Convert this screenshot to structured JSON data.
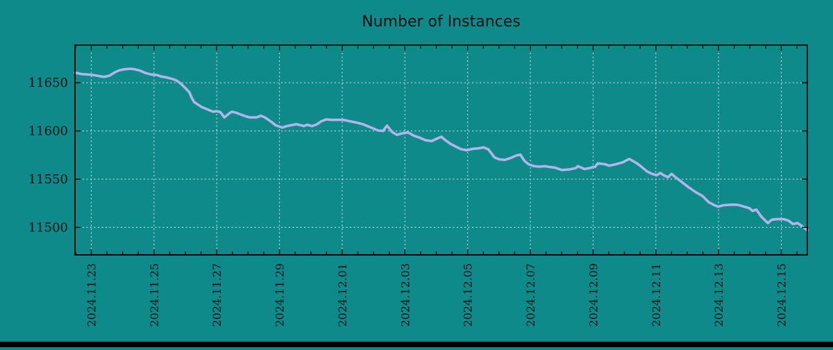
{
  "page": {
    "bottom_bar_color": "#000000"
  },
  "chart_data": {
    "type": "line",
    "title": "Number of Instances",
    "xlabel": "",
    "ylabel": "",
    "grid": true,
    "legend": "none",
    "x_axis_note": "x positions are in days, 0 = 2024.11.23 tick",
    "xlim": [
      -0.52,
      22.83
    ],
    "ylim": [
      11471.5,
      11689
    ],
    "yticks": [
      11500,
      11550,
      11600,
      11650
    ],
    "xticks": [
      {
        "pos": 0,
        "label": "2024.11.23"
      },
      {
        "pos": 2,
        "label": "2024.11.25"
      },
      {
        "pos": 4,
        "label": "2024.11.27"
      },
      {
        "pos": 6,
        "label": "2024.11.29"
      },
      {
        "pos": 8,
        "label": "2024.12.01"
      },
      {
        "pos": 10,
        "label": "2024.12.03"
      },
      {
        "pos": 12,
        "label": "2024.12.05"
      },
      {
        "pos": 14,
        "label": "2024.12.07"
      },
      {
        "pos": 16,
        "label": "2024.12.09"
      },
      {
        "pos": 18,
        "label": "2024.12.11"
      },
      {
        "pos": 20,
        "label": "2024.12.13"
      },
      {
        "pos": 22,
        "label": "2024.12.15"
      }
    ],
    "minor_xtick_step": 0.5,
    "colors": {
      "background": "#0e8a8b",
      "line": "#b4b4ea",
      "grid": "#e6e6e6",
      "axis": "#000000",
      "text": "#111111"
    },
    "series": [
      {
        "name": "instances",
        "points": [
          [
            -0.52,
            11660.5
          ],
          [
            -0.3,
            11659
          ],
          [
            -0.12,
            11658.5
          ],
          [
            0.06,
            11658
          ],
          [
            0.23,
            11657
          ],
          [
            0.41,
            11656
          ],
          [
            0.59,
            11657.5
          ],
          [
            0.76,
            11661
          ],
          [
            0.9,
            11663
          ],
          [
            1.07,
            11664
          ],
          [
            1.25,
            11664.5
          ],
          [
            1.38,
            11664
          ],
          [
            1.56,
            11662.5
          ],
          [
            1.74,
            11660
          ],
          [
            1.91,
            11658.5
          ],
          [
            2.09,
            11658
          ],
          [
            2.22,
            11656.5
          ],
          [
            2.4,
            11655.5
          ],
          [
            2.58,
            11654
          ],
          [
            2.71,
            11652.5
          ],
          [
            2.84,
            11649.5
          ],
          [
            3.0,
            11644.5
          ],
          [
            3.13,
            11640
          ],
          [
            3.2,
            11634.5
          ],
          [
            3.28,
            11630
          ],
          [
            3.51,
            11625
          ],
          [
            3.73,
            11622
          ],
          [
            3.88,
            11620
          ],
          [
            3.99,
            11620.5
          ],
          [
            4.12,
            11619.5
          ],
          [
            4.24,
            11614
          ],
          [
            4.39,
            11618
          ],
          [
            4.48,
            11620
          ],
          [
            4.61,
            11619
          ],
          [
            4.77,
            11617
          ],
          [
            4.9,
            11615.5
          ],
          [
            5.05,
            11614
          ],
          [
            5.27,
            11614
          ],
          [
            5.41,
            11615.8
          ],
          [
            5.56,
            11613.5
          ],
          [
            5.72,
            11610
          ],
          [
            5.87,
            11606
          ],
          [
            6.0,
            11604.5
          ],
          [
            6.09,
            11603.5
          ],
          [
            6.23,
            11605
          ],
          [
            6.38,
            11606
          ],
          [
            6.54,
            11607
          ],
          [
            6.67,
            11606
          ],
          [
            6.78,
            11605
          ],
          [
            6.89,
            11606.5
          ],
          [
            7.04,
            11605
          ],
          [
            7.2,
            11607
          ],
          [
            7.33,
            11610
          ],
          [
            7.49,
            11612
          ],
          [
            7.64,
            11611.5
          ],
          [
            7.82,
            11611.5
          ],
          [
            8.04,
            11611.5
          ],
          [
            8.26,
            11610
          ],
          [
            8.48,
            11608.5
          ],
          [
            8.66,
            11607
          ],
          [
            8.92,
            11603.5
          ],
          [
            9.14,
            11600.5
          ],
          [
            9.3,
            11600
          ],
          [
            9.43,
            11605.5
          ],
          [
            9.59,
            11599
          ],
          [
            9.74,
            11596
          ],
          [
            9.92,
            11597.5
          ],
          [
            10.1,
            11598.5
          ],
          [
            10.29,
            11595
          ],
          [
            10.47,
            11593
          ],
          [
            10.65,
            11590.5
          ],
          [
            10.85,
            11589.5
          ],
          [
            11.02,
            11592
          ],
          [
            11.16,
            11594
          ],
          [
            11.31,
            11590
          ],
          [
            11.46,
            11586.5
          ],
          [
            11.64,
            11583.5
          ],
          [
            11.8,
            11581
          ],
          [
            11.98,
            11580
          ],
          [
            12.17,
            11581.5
          ],
          [
            12.35,
            11582
          ],
          [
            12.51,
            11583
          ],
          [
            12.66,
            11581
          ],
          [
            12.75,
            11577
          ],
          [
            12.86,
            11572.5
          ],
          [
            13.01,
            11570.5
          ],
          [
            13.19,
            11570
          ],
          [
            13.37,
            11572
          ],
          [
            13.55,
            11574.5
          ],
          [
            13.68,
            11575.5
          ],
          [
            13.81,
            11569
          ],
          [
            13.94,
            11565.5
          ],
          [
            14.12,
            11563.5
          ],
          [
            14.3,
            11563
          ],
          [
            14.47,
            11563.5
          ],
          [
            14.63,
            11562.5
          ],
          [
            14.78,
            11562
          ],
          [
            15.0,
            11559.5
          ],
          [
            15.23,
            11560
          ],
          [
            15.45,
            11561.5
          ],
          [
            15.51,
            11563.5
          ],
          [
            15.73,
            11560.5
          ],
          [
            15.89,
            11561.5
          ],
          [
            16.07,
            11563
          ],
          [
            16.15,
            11566.5
          ],
          [
            16.38,
            11565.5
          ],
          [
            16.51,
            11564
          ],
          [
            16.73,
            11565.5
          ],
          [
            16.95,
            11567.5
          ],
          [
            17.15,
            11571
          ],
          [
            17.37,
            11567
          ],
          [
            17.5,
            11564
          ],
          [
            17.72,
            11558
          ],
          [
            17.88,
            11555.5
          ],
          [
            18.03,
            11554
          ],
          [
            18.14,
            11556.5
          ],
          [
            18.25,
            11554
          ],
          [
            18.39,
            11552
          ],
          [
            18.5,
            11555.5
          ],
          [
            18.61,
            11552.5
          ],
          [
            18.83,
            11547
          ],
          [
            19.05,
            11541.5
          ],
          [
            19.27,
            11536.5
          ],
          [
            19.49,
            11532.5
          ],
          [
            19.69,
            11526
          ],
          [
            19.87,
            11523
          ],
          [
            19.98,
            11521.5
          ],
          [
            20.16,
            11523
          ],
          [
            20.38,
            11523.5
          ],
          [
            20.6,
            11523.5
          ],
          [
            20.82,
            11521.5
          ],
          [
            20.98,
            11520
          ],
          [
            21.09,
            11517
          ],
          [
            21.2,
            11518.5
          ],
          [
            21.37,
            11511
          ],
          [
            21.57,
            11504.5
          ],
          [
            21.7,
            11508
          ],
          [
            21.86,
            11508.5
          ],
          [
            22.08,
            11508.5
          ],
          [
            22.23,
            11507
          ],
          [
            22.37,
            11503.5
          ],
          [
            22.52,
            11504.5
          ],
          [
            22.7,
            11500.5
          ],
          [
            22.83,
            11497
          ]
        ]
      }
    ]
  }
}
